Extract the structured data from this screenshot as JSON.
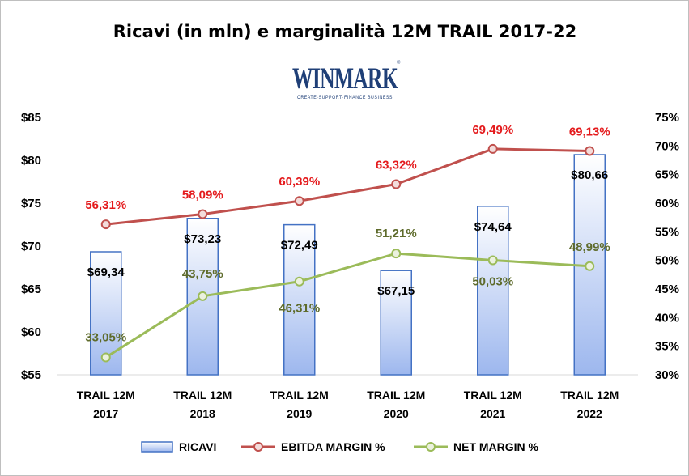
{
  "chart_data": {
    "type": "bar+line",
    "title": "Ricavi  (in mln) e marginalità  12M TRAIL 2017-22",
    "logo": {
      "name": "WINMARK",
      "tagline": "CREATE·SUPPORT·FINANCE BUSINESS"
    },
    "categories": [
      [
        "TRAIL 12M",
        "2017"
      ],
      [
        "TRAIL 12M",
        "2018"
      ],
      [
        "TRAIL 12M",
        "2019"
      ],
      [
        "TRAIL 12M",
        "2020"
      ],
      [
        "TRAIL 12M",
        "2021"
      ],
      [
        "TRAIL 12M",
        "2022"
      ]
    ],
    "y_left": {
      "min": 55,
      "max": 85,
      "step": 5,
      "ticks": [
        "$55",
        "$60",
        "$65",
        "$70",
        "$75",
        "$80",
        "$85"
      ]
    },
    "y_right": {
      "min": 30,
      "max": 75,
      "step": 5,
      "ticks": [
        "30%",
        "35%",
        "40%",
        "45%",
        "50%",
        "55%",
        "60%",
        "65%",
        "70%",
        "75%"
      ]
    },
    "series": [
      {
        "name": "RICAVI",
        "type": "bar",
        "axis": "left",
        "values": [
          69.34,
          73.23,
          72.49,
          67.15,
          74.64,
          80.66
        ],
        "labels": [
          "$69,34",
          "$73,23",
          "$72,49",
          "$67,15",
          "$74,64",
          "$80,66"
        ],
        "color": "#4472c4"
      },
      {
        "name": "EBITDA MARGIN %",
        "type": "line",
        "axis": "right",
        "values": [
          56.31,
          58.09,
          60.39,
          63.32,
          69.49,
          69.13
        ],
        "labels": [
          "56,31%",
          "58,09%",
          "60,39%",
          "63,32%",
          "69,49%",
          "69,13%"
        ],
        "color": "#c0504d",
        "label_color": "#e41a1c"
      },
      {
        "name": "NET MARGIN %",
        "type": "line",
        "axis": "right",
        "values": [
          33.05,
          43.75,
          46.31,
          51.21,
          50.03,
          48.99
        ],
        "labels": [
          "33,05%",
          "43,75%",
          "46,31%",
          "51,21%",
          "50,03%",
          "48,99%"
        ],
        "color": "#9bbb59",
        "label_color": "#5e6b2b"
      }
    ],
    "grid": false,
    "legend_position": "bottom"
  }
}
